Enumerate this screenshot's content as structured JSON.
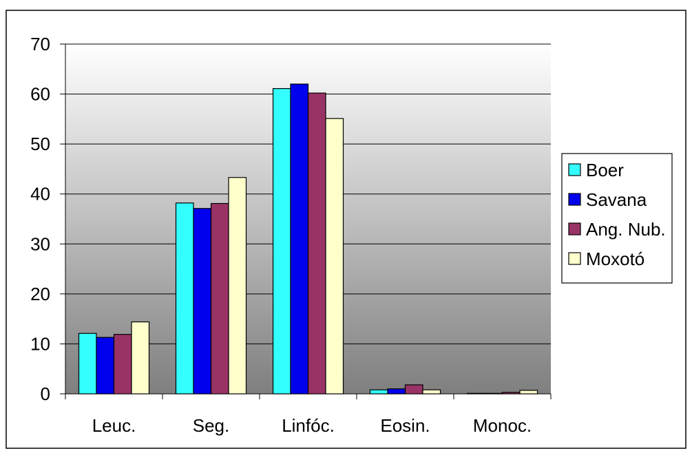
{
  "chart_data": {
    "type": "bar",
    "categories": [
      "Leuc.",
      "Seg.",
      "Linfóc.",
      "Eosin.",
      "Monoc."
    ],
    "series": [
      {
        "name": "Boer",
        "color": "#33ffff",
        "values": [
          12.1,
          38.2,
          61.1,
          0.8,
          0.1
        ]
      },
      {
        "name": "Savana",
        "color": "#0000ee",
        "values": [
          11.3,
          37.1,
          62.0,
          1.0,
          0.1
        ]
      },
      {
        "name": "Ang. Nub.",
        "color": "#993366",
        "values": [
          11.9,
          38.1,
          60.2,
          1.8,
          0.3
        ]
      },
      {
        "name": "Moxotó",
        "color": "#ffffcc",
        "values": [
          14.4,
          43.3,
          55.1,
          0.8,
          0.7
        ]
      }
    ],
    "ylim": [
      0,
      70
    ],
    "yticks": [
      "0",
      "10",
      "20",
      "30",
      "40",
      "50",
      "60",
      "70"
    ],
    "grid": true,
    "legend": "right",
    "plot_background": "gradient gray"
  }
}
